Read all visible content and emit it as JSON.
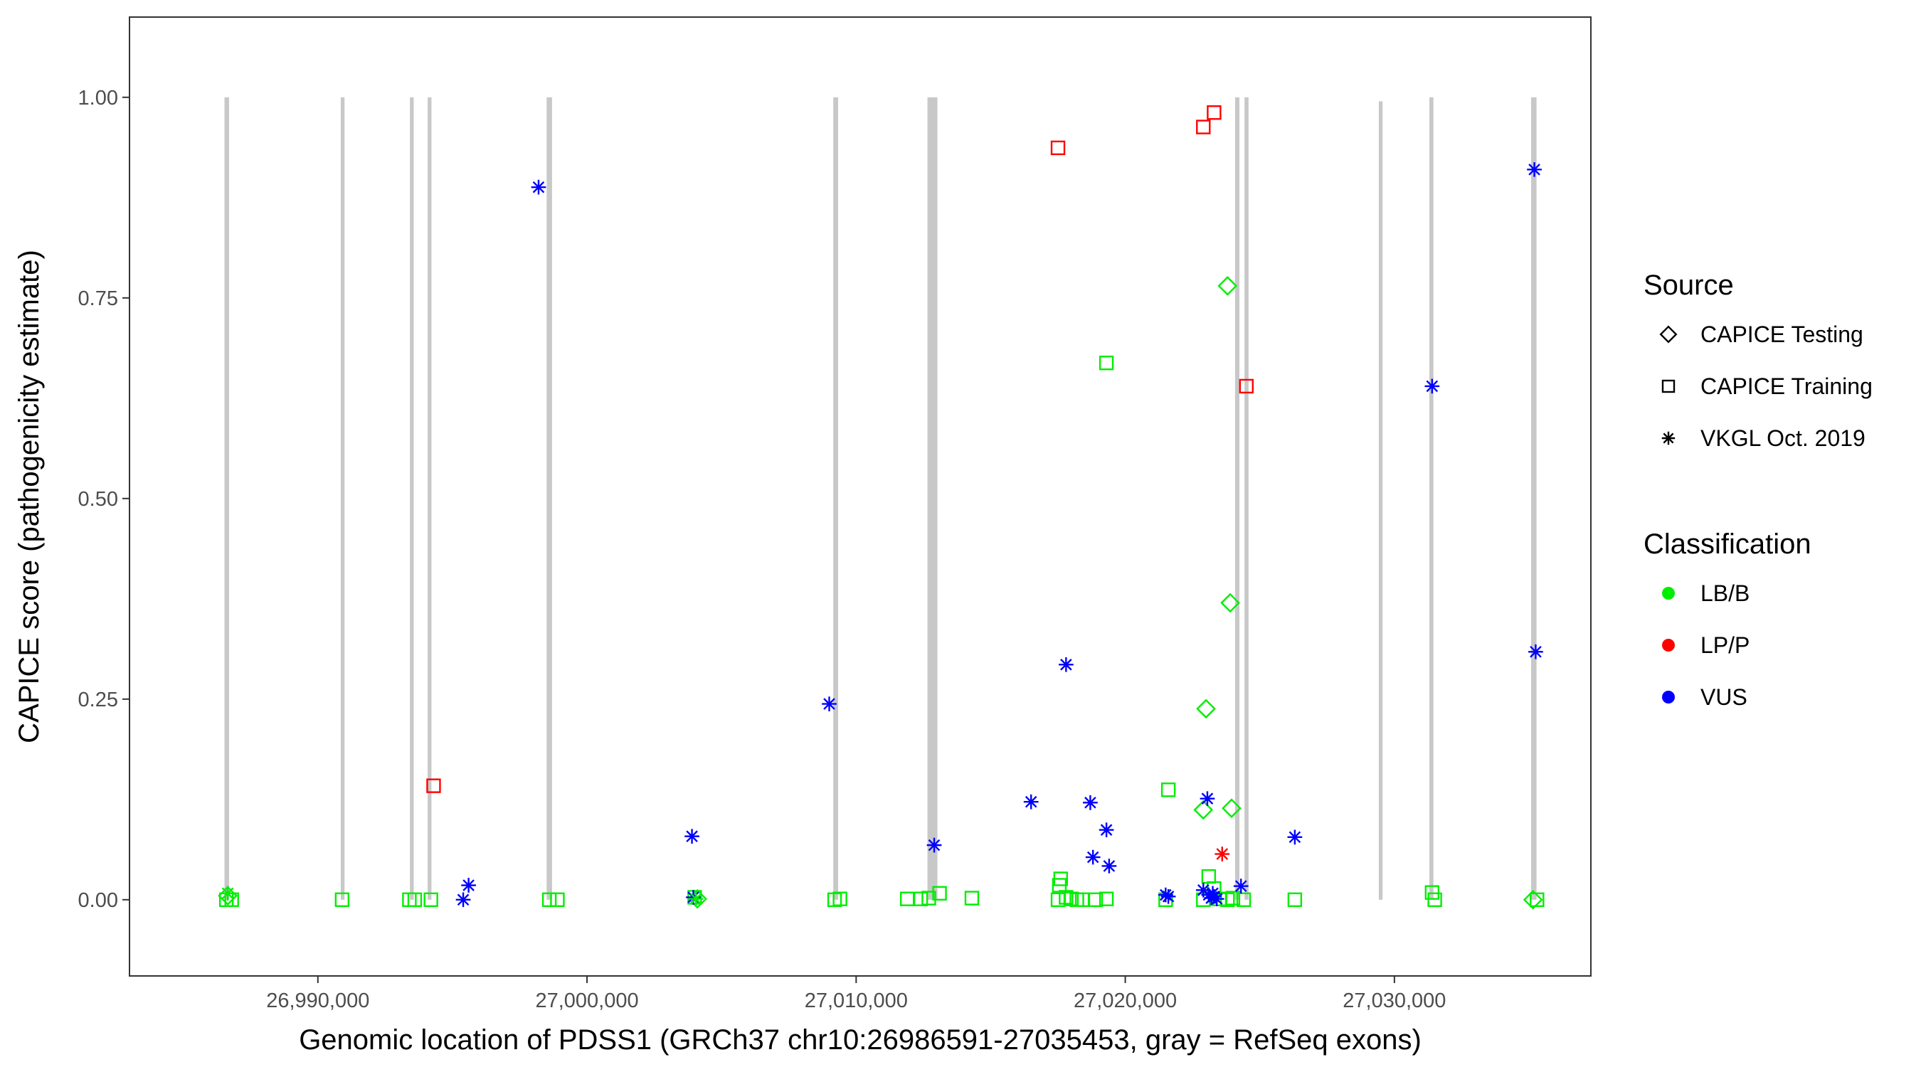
{
  "chart_data": {
    "type": "scatter",
    "title": "",
    "xlabel": "Genomic location of PDSS1 (GRCh37 chr10:26986591-27035453, gray = RefSeq exons)",
    "ylabel": "CAPICE score (pathogenicity estimate)",
    "xlim": [
      26983000,
      27037300
    ],
    "ylim": [
      -0.095,
      1.1
    ],
    "x_ticks": [
      26990000,
      27000000,
      27010000,
      27020000,
      27030000
    ],
    "x_tick_labels": [
      "26,990,000",
      "27,000,000",
      "27,010,000",
      "27,020,000",
      "27,030,000"
    ],
    "y_ticks": [
      0,
      0.25,
      0.5,
      0.75,
      1.0
    ],
    "y_tick_labels": [
      "0.00",
      "0.25",
      "0.50",
      "0.75",
      "1.00"
    ],
    "grid": false,
    "legend_position": "right",
    "exons": [
      {
        "start": 26986530,
        "end": 26986700,
        "tall": true
      },
      {
        "start": 26990850,
        "end": 26990990,
        "tall": true
      },
      {
        "start": 26993420,
        "end": 26993560,
        "tall": true
      },
      {
        "start": 26994080,
        "end": 26994220,
        "tall": true
      },
      {
        "start": 26998500,
        "end": 26998700,
        "tall": true
      },
      {
        "start": 27009150,
        "end": 27009330,
        "tall": true
      },
      {
        "start": 27012650,
        "end": 27013020,
        "tall": true
      },
      {
        "start": 27024080,
        "end": 27024240,
        "tall": true
      },
      {
        "start": 27024430,
        "end": 27024580,
        "tall": true
      },
      {
        "start": 27029420,
        "end": 27029560,
        "tall": false
      },
      {
        "start": 27031300,
        "end": 27031450,
        "tall": true
      },
      {
        "start": 27035080,
        "end": 27035280,
        "tall": true
      }
    ],
    "legend": {
      "source_title": "Source",
      "source_entries": [
        {
          "label": "CAPICE Testing",
          "shape": "diamond"
        },
        {
          "label": "CAPICE Training",
          "shape": "square"
        },
        {
          "label": "VKGL Oct. 2019",
          "shape": "asterisk"
        }
      ],
      "class_title": "Classification",
      "class_entries": [
        {
          "label": "LB/B",
          "color": "#00ee00"
        },
        {
          "label": "LP/P",
          "color": "#ff0000"
        },
        {
          "label": "VUS",
          "color": "#0000ff"
        }
      ]
    },
    "colors": {
      "LB/B": "#00ee00",
      "LP/P": "#ff0000",
      "VUS": "#0000ff",
      "exon": "#c8c8c8"
    },
    "series": [
      {
        "source": "CAPICE Training",
        "classification": "LP/P",
        "points": [
          [
            26994300,
            0.142
          ],
          [
            27017500,
            0.937
          ],
          [
            27022900,
            0.963
          ],
          [
            27023300,
            0.981
          ],
          [
            27024500,
            0.64
          ]
        ]
      },
      {
        "source": "CAPICE Training",
        "classification": "LB/B",
        "points": [
          [
            26986600,
            0.0
          ],
          [
            26986800,
            0.0
          ],
          [
            26990900,
            0.0
          ],
          [
            26993400,
            0.0
          ],
          [
            26993600,
            0.0
          ],
          [
            26994200,
            0.0
          ],
          [
            26998600,
            0.0
          ],
          [
            26998900,
            0.0
          ],
          [
            27004000,
            0.003
          ],
          [
            27009200,
            0.0
          ],
          [
            27009400,
            0.001
          ],
          [
            27011900,
            0.001
          ],
          [
            27012400,
            0.001
          ],
          [
            27012700,
            0.002
          ],
          [
            27013100,
            0.008
          ],
          [
            27014300,
            0.002
          ],
          [
            27017500,
            0.0
          ],
          [
            27017550,
            0.018
          ],
          [
            27017600,
            0.026
          ],
          [
            27017800,
            0.003
          ],
          [
            27018000,
            0.001
          ],
          [
            27018200,
            0.0
          ],
          [
            27018400,
            0.0
          ],
          [
            27018900,
            0.0
          ],
          [
            27019300,
            0.001
          ],
          [
            27019300,
            0.669
          ],
          [
            27021500,
            0.0
          ],
          [
            27021600,
            0.137
          ],
          [
            27022900,
            0.0
          ],
          [
            27023100,
            0.029
          ],
          [
            27023300,
            0.014
          ],
          [
            27023500,
            0.001
          ],
          [
            27023800,
            0.0
          ],
          [
            27024000,
            0.002
          ],
          [
            27024400,
            0.0
          ],
          [
            27026300,
            0.0
          ],
          [
            27031400,
            0.009
          ],
          [
            27031500,
            0.0
          ],
          [
            27035300,
            0.0
          ]
        ]
      },
      {
        "source": "CAPICE Testing",
        "classification": "LB/B",
        "points": [
          [
            26986650,
            0.005
          ],
          [
            27004100,
            0.001
          ],
          [
            27022900,
            0.112
          ],
          [
            27023000,
            0.238
          ],
          [
            27023800,
            0.765
          ],
          [
            27023900,
            0.37
          ],
          [
            27023950,
            0.114
          ],
          [
            27035150,
            0.0
          ]
        ]
      },
      {
        "source": "VKGL Oct. 2019",
        "classification": "VUS",
        "points": [
          [
            26995400,
            0.0
          ],
          [
            26995600,
            0.018
          ],
          [
            26998200,
            0.888
          ],
          [
            27003900,
            0.079
          ],
          [
            27003950,
            0.003
          ],
          [
            27009000,
            0.244
          ],
          [
            27012900,
            0.068
          ],
          [
            27016500,
            0.122
          ],
          [
            27017800,
            0.293
          ],
          [
            27018700,
            0.121
          ],
          [
            27018800,
            0.053
          ],
          [
            27019300,
            0.087
          ],
          [
            27019400,
            0.042
          ],
          [
            27021500,
            0.006
          ],
          [
            27021600,
            0.004
          ],
          [
            27022900,
            0.012
          ],
          [
            27023050,
            0.126
          ],
          [
            27023100,
            0.006
          ],
          [
            27023200,
            0.002
          ],
          [
            27023250,
            0.008
          ],
          [
            27023300,
            0.004
          ],
          [
            27023400,
            0.001
          ],
          [
            27024300,
            0.017
          ],
          [
            27026300,
            0.078
          ],
          [
            27031400,
            0.64
          ],
          [
            27035200,
            0.91
          ],
          [
            27035250,
            0.309
          ]
        ]
      },
      {
        "source": "VKGL Oct. 2019",
        "classification": "LB/B",
        "points": [
          [
            26986650,
            0.008
          ],
          [
            27004050,
            0.001
          ]
        ]
      },
      {
        "source": "VKGL Oct. 2019",
        "classification": "LP/P",
        "points": [
          [
            27023600,
            0.057
          ]
        ]
      }
    ]
  }
}
